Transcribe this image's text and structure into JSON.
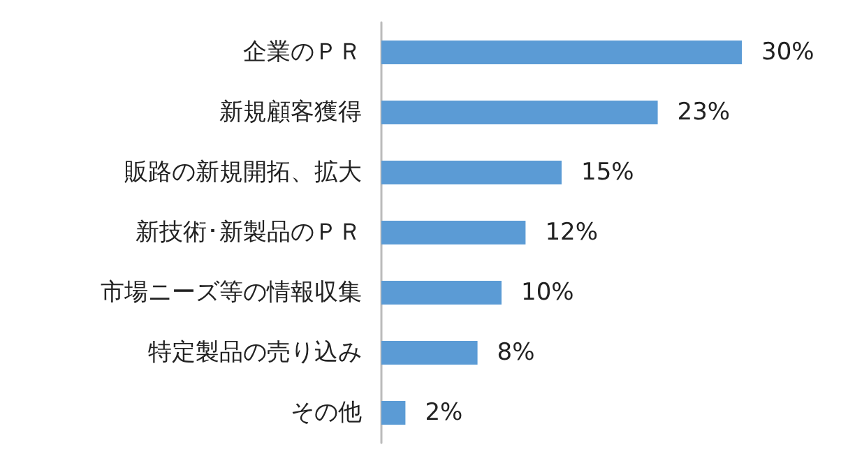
{
  "chart_data": {
    "type": "bar",
    "orientation": "horizontal",
    "categories": [
      "企業のＰＲ",
      "新規顧客獲得",
      "販路の新規開拓、拡大",
      "新技術･新製品のＰＲ",
      "市場ニーズ等の情報収集",
      "特定製品の売り込み",
      "その他"
    ],
    "values": [
      30,
      23,
      15,
      12,
      10,
      8,
      2
    ],
    "value_labels": [
      "30%",
      "23%",
      "15%",
      "12%",
      "10%",
      "8%",
      "2%"
    ],
    "color": "#5b9bd5"
  }
}
